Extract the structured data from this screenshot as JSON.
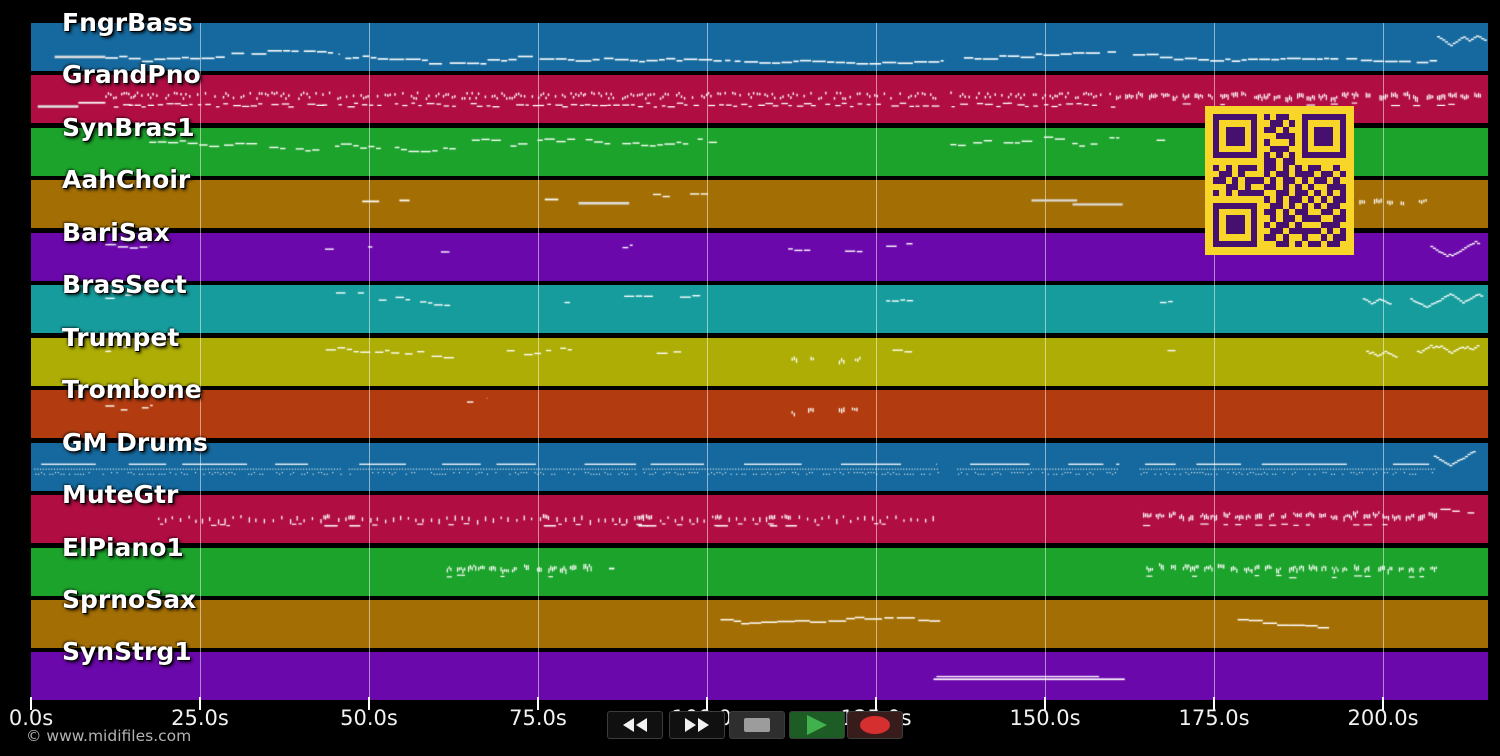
{
  "watermark": {
    "text": "© www.midifiles.com",
    "color": "#b3b3b3"
  },
  "timeline": {
    "unit": "s",
    "tick_seconds": [
      0,
      25,
      50,
      75,
      100,
      125,
      150,
      175,
      200
    ],
    "tick_labels": [
      "0.0s",
      "25.0s",
      "50.0s",
      "75.0s",
      "100.0s",
      "125.0s",
      "150.0s",
      "175.0s",
      "200.0s"
    ],
    "gridline_color": "rgba(255,255,255,0.5)"
  },
  "note_color": "#ffffff",
  "tracks": [
    {
      "name": "FngrBass",
      "color": "#15699e",
      "segments": [
        [
          "line",
          3.5,
          11,
          0.68
        ],
        [
          "bassline",
          11,
          45.5
        ],
        [
          "bassline",
          46.5,
          135
        ],
        [
          "bassline",
          138,
          160.5
        ],
        [
          "bassline",
          163,
          208
        ],
        [
          "wave-dense",
          208,
          215
        ]
      ]
    },
    {
      "name": "GrandPno",
      "color": "#b00d43",
      "segments": [
        [
          "line",
          1,
          7,
          0.62
        ],
        [
          "dash",
          7,
          11,
          0.55
        ],
        [
          "piano",
          11,
          133
        ],
        [
          "piano",
          136,
          160
        ],
        [
          "blocks",
          160.5,
          214.5
        ]
      ]
    },
    {
      "name": "SynBras1",
      "color": "#1ca32b",
      "segments": [
        [
          "wave-scatter",
          17.5,
          63
        ],
        [
          "wave-scatter",
          64,
          102
        ],
        [
          "wave-scatter",
          136,
          161
        ],
        [
          "wave-scatter",
          166.5,
          170
        ]
      ]
    },
    {
      "name": "AahChoir",
      "color": "#a36f05",
      "segments": [
        [
          "dash",
          49,
          51.5,
          0.42
        ],
        [
          "dash",
          54.5,
          56,
          0.4
        ],
        [
          "dash",
          76,
          78,
          0.38
        ],
        [
          "line",
          81,
          88.5,
          0.45
        ],
        [
          "wave-scatter",
          92,
          94.5
        ],
        [
          "wave-scatter",
          97.5,
          100.5
        ],
        [
          "line2",
          148,
          161.5
        ],
        [
          "blocks-sparse",
          196.5,
          207.5
        ]
      ]
    },
    {
      "name": "BariSax",
      "color": "#6b08ab",
      "segments": [
        [
          "wave-scatter",
          11,
          17.5
        ],
        [
          "wave-scatter",
          43.5,
          45.5
        ],
        [
          "wave-scatter",
          49,
          50.5
        ],
        [
          "wave-scatter",
          58.5,
          62
        ],
        [
          "wave-scatter",
          87.5,
          89
        ],
        [
          "wave-scatter",
          112,
          116
        ],
        [
          "wave-scatter",
          119.5,
          123
        ],
        [
          "wave-scatter",
          126.5,
          130.5
        ],
        [
          "wave-dense",
          207,
          214
        ]
      ]
    },
    {
      "name": "BrasSect",
      "color": "#169c9c",
      "segments": [
        [
          "wave-scatter",
          11,
          18
        ],
        [
          "wave-scatter",
          43.5,
          62
        ],
        [
          "wave-scatter",
          78,
          80.5
        ],
        [
          "wave-scatter",
          87,
          92
        ],
        [
          "wave-scatter",
          96,
          99
        ],
        [
          "wave-scatter",
          126.5,
          130.5
        ],
        [
          "wave-scatter",
          167,
          169.5
        ],
        [
          "wave-dense",
          197,
          201
        ],
        [
          "wave-dense",
          204,
          214.5
        ]
      ]
    },
    {
      "name": "Trumpet",
      "color": "#adad06",
      "segments": [
        [
          "wave-scatter",
          11,
          17.5
        ],
        [
          "wave-scatter",
          43,
          63
        ],
        [
          "wave-scatter",
          69,
          81
        ],
        [
          "wave-scatter",
          91.5,
          96.5
        ],
        [
          "blocks-sparse",
          112.5,
          116.5
        ],
        [
          "blocks-sparse",
          119.5,
          124
        ],
        [
          "wave-scatter",
          126.5,
          130.5
        ],
        [
          "wave-scatter",
          167,
          169.5
        ],
        [
          "wave-dense",
          197.5,
          202
        ],
        [
          "wave-dense",
          205,
          214
        ]
      ]
    },
    {
      "name": "Trombone",
      "color": "#b23c10",
      "segments": [
        [
          "wave-scatter",
          11,
          18
        ],
        [
          "wave-scatter",
          64.5,
          67.5
        ],
        [
          "blocks-sparse",
          112.5,
          116.5
        ],
        [
          "blocks-sparse",
          119.5,
          124
        ]
      ]
    },
    {
      "name": "GM Drums",
      "color": "#15699e",
      "segments": [
        [
          "drums",
          0.5,
          46
        ],
        [
          "drums",
          47,
          89.5
        ],
        [
          "drums",
          90.5,
          134
        ],
        [
          "drums",
          137,
          161
        ],
        [
          "drums",
          164,
          207.5
        ],
        [
          "wave-dense",
          207.5,
          213.5
        ]
      ]
    },
    {
      "name": "MuteGtr",
      "color": "#b00d43",
      "segments": [
        [
          "ticks",
          18.8,
          45.5
        ],
        [
          "ticks",
          46.5,
          89.5
        ],
        [
          "ticks",
          90.5,
          134.5
        ],
        [
          "blocks",
          164.5,
          207
        ],
        [
          "wave-scatter",
          207,
          213.5
        ]
      ]
    },
    {
      "name": "ElPiano1",
      "color": "#1ca32b",
      "segments": [
        [
          "blocks",
          61.5,
          82.5
        ],
        [
          "dash",
          85.5,
          86.3,
          0.42
        ],
        [
          "blocks",
          165,
          207.5
        ]
      ]
    },
    {
      "name": "SprnoSax",
      "color": "#a36f05",
      "segments": [
        [
          "melody",
          102,
          134.5
        ],
        [
          "melody",
          178.5,
          192.5
        ]
      ]
    },
    {
      "name": "SynStrg1",
      "color": "#6b08ab",
      "segments": [
        [
          "long-line",
          133.5,
          161.8
        ]
      ]
    }
  ],
  "transport": {
    "buttons": [
      {
        "name": "rewind-button",
        "icon": "rewind-icon",
        "type": "rewind",
        "bg": "#101010",
        "fg": "#f2f2f2"
      },
      {
        "name": "fast-forward-button",
        "icon": "fast-forward-icon",
        "type": "forward",
        "bg": "#101010",
        "fg": "#f2f2f2"
      },
      {
        "name": "stop-button",
        "icon": "stop-icon",
        "type": "stop",
        "bg": "#2e2e2e",
        "fg": "#9c9c9c"
      },
      {
        "name": "play-button",
        "icon": "play-icon",
        "type": "play",
        "bg": "#1d5c24",
        "fg": "#40b14c"
      },
      {
        "name": "record-button",
        "icon": "record-icon",
        "type": "record",
        "bg": "#381c1c",
        "fg": "#d62f2f"
      }
    ]
  },
  "qr_code": {
    "light": "#f8d629",
    "dark": "#45106e",
    "modules": [
      "111111101011001111111",
      "100000100110101000001",
      "101110101101001011101",
      "101110100011101011101",
      "101110101000101011101",
      "100000100111001000001",
      "111111101010101111111",
      "000000001101100000000",
      "101011101101010110010",
      "011010001011011101101",
      "110101110101101011010",
      "001101001101010100111",
      "101011110011011010101",
      "000000001010110101011",
      "111111100110101010110",
      "100000101101011001101",
      "101110100101101110011",
      "101110101011010001110",
      "101110100110111110101",
      "100000101101001001011",
      "111111100011010110110"
    ]
  }
}
